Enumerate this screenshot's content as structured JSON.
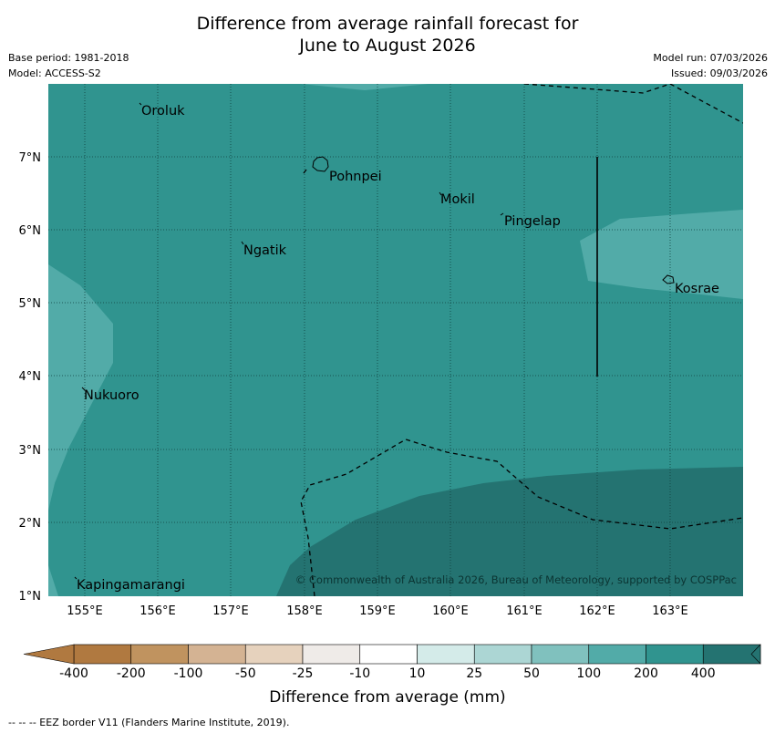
{
  "title_line1": "Difference from average rainfall forecast for",
  "title_line2": "June to August 2026",
  "base_period": "Base period: 1981-2018",
  "model": "Model: ACCESS-S2",
  "model_run": "Model run: 07/03/2026",
  "issued": "Issued: 09/03/2026",
  "copyright": "© Commonwealth of Australia 2026, Bureau of Meteorology, supported by COSPPac",
  "lat_labels": [
    "7°N",
    "6°N",
    "5°N",
    "4°N",
    "3°N",
    "2°N",
    "1°N"
  ],
  "lon_labels": [
    "155°E",
    "156°E",
    "157°E",
    "158°E",
    "159°E",
    "160°E",
    "161°E",
    "162°E",
    "163°E"
  ],
  "places": [
    "Oroluk",
    "Pohnpei",
    "Mokil",
    "Pingelap",
    "Ngatik",
    "Kosrae",
    "Nukuoro",
    "Kapingamarangi"
  ],
  "colorbar": {
    "labels": [
      "-400",
      "-200",
      "-100",
      "-50",
      "-25",
      "-10",
      "10",
      "25",
      "50",
      "100",
      "200",
      "400"
    ],
    "colors": [
      "#b07940",
      "#c0935f",
      "#d4b393",
      "#e6d2bd",
      "#efebe8",
      "#ffffff",
      "#d4ebe9",
      "#acd6d4",
      "#80c1be",
      "#52aba8",
      "#30948f",
      "#247371"
    ],
    "title": "Difference from average (mm)"
  },
  "footnote": "-- -- -- EEZ border V11 (Flanders Marine Institute, 2019)."
}
